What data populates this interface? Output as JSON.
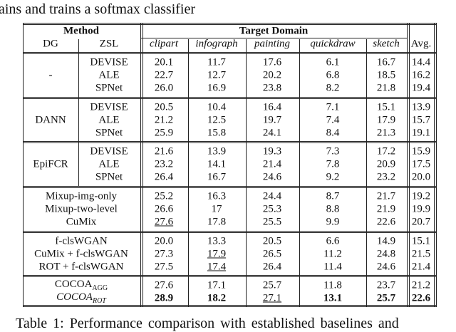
{
  "top_text": "ains and trains a softmax classifier",
  "table": {
    "header": {
      "method": "Method",
      "target": "Target Domain",
      "dg": "DG",
      "zsl": "ZSL",
      "domains": [
        "clipart",
        "infograph",
        "painting",
        "quickdraw",
        "sketch"
      ],
      "avg": "Avg."
    },
    "groups": [
      {
        "dg": "-",
        "rows": [
          {
            "zsl": "DEVISE",
            "values": [
              "20.1",
              "11.7",
              "17.6",
              "6.1",
              "16.7",
              "14.4"
            ]
          },
          {
            "zsl": "ALE",
            "values": [
              "22.7",
              "12.7",
              "20.2",
              "6.8",
              "18.5",
              "16.2"
            ]
          },
          {
            "zsl": "SPNet",
            "values": [
              "26.0",
              "16.9",
              "23.8",
              "8.2",
              "21.8",
              "19.4"
            ]
          }
        ]
      },
      {
        "dg": "DANN",
        "rows": [
          {
            "zsl": "DEVISE",
            "values": [
              "20.5",
              "10.4",
              "16.4",
              "7.1",
              "15.1",
              "13.9"
            ]
          },
          {
            "zsl": "ALE",
            "values": [
              "21.2",
              "12.5",
              "19.7",
              "7.4",
              "17.9",
              "15.7"
            ]
          },
          {
            "zsl": "SPNet",
            "values": [
              "25.9",
              "15.8",
              "24.1",
              "8.4",
              "21.3",
              "19.1"
            ]
          }
        ]
      },
      {
        "dg": "EpiFCR",
        "rows": [
          {
            "zsl": "DEVISE",
            "values": [
              "21.6",
              "13.9",
              "19.3",
              "7.3",
              "17.2",
              "15.9"
            ]
          },
          {
            "zsl": "ALE",
            "values": [
              "23.2",
              "14.1",
              "21.4",
              "7.8",
              "20.9",
              "17.5"
            ]
          },
          {
            "zsl": "SPNet",
            "values": [
              "26.4",
              "16.7",
              "24.6",
              "9.2",
              "23.2",
              "20.0"
            ]
          }
        ]
      },
      {
        "rows": [
          {
            "method": "Mixup-img-only",
            "values": [
              "25.2",
              "16.3",
              "24.4",
              "8.7",
              "21.7",
              "19.2"
            ]
          },
          {
            "method": "Mixup-two-level",
            "values": [
              "26.6",
              "17",
              "25.3",
              "8.8",
              "21.9",
              "19.9"
            ]
          },
          {
            "method": "CuMix",
            "values": [
              "27.6",
              "17.8",
              "25.5",
              "9.9",
              "22.6",
              "20.7"
            ],
            "underline": [
              0
            ]
          }
        ]
      },
      {
        "rows": [
          {
            "method": "f-clsWGAN",
            "values": [
              "20.0",
              "13.3",
              "20.5",
              "6.6",
              "14.9",
              "15.1"
            ]
          },
          {
            "method": "CuMix + f-clsWGAN",
            "values": [
              "27.3",
              "17.9",
              "26.5",
              "11.2",
              "24.8",
              "21.5"
            ],
            "underline": [
              1
            ]
          },
          {
            "method": "ROT + f-clsWGAN",
            "values": [
              "27.5",
              "17.4",
              "26.4",
              "11.4",
              "24.6",
              "21.4"
            ],
            "underline": [
              1
            ]
          }
        ]
      },
      {
        "rows": [
          {
            "method": "COCOA",
            "sub": "AGG",
            "values": [
              "27.6",
              "17.1",
              "25.7",
              "11.8",
              "23.7",
              "21.2"
            ]
          },
          {
            "method": "COCOA",
            "sub": "ROT",
            "italic": true,
            "values": [
              "28.9",
              "18.2",
              "27.1",
              "13.1",
              "25.7",
              "22.6"
            ],
            "bold": [
              0,
              1,
              3,
              4,
              5
            ],
            "underline": [
              2
            ]
          }
        ]
      }
    ]
  },
  "caption": "Table 1:  Performance comparison with established baselines and"
}
